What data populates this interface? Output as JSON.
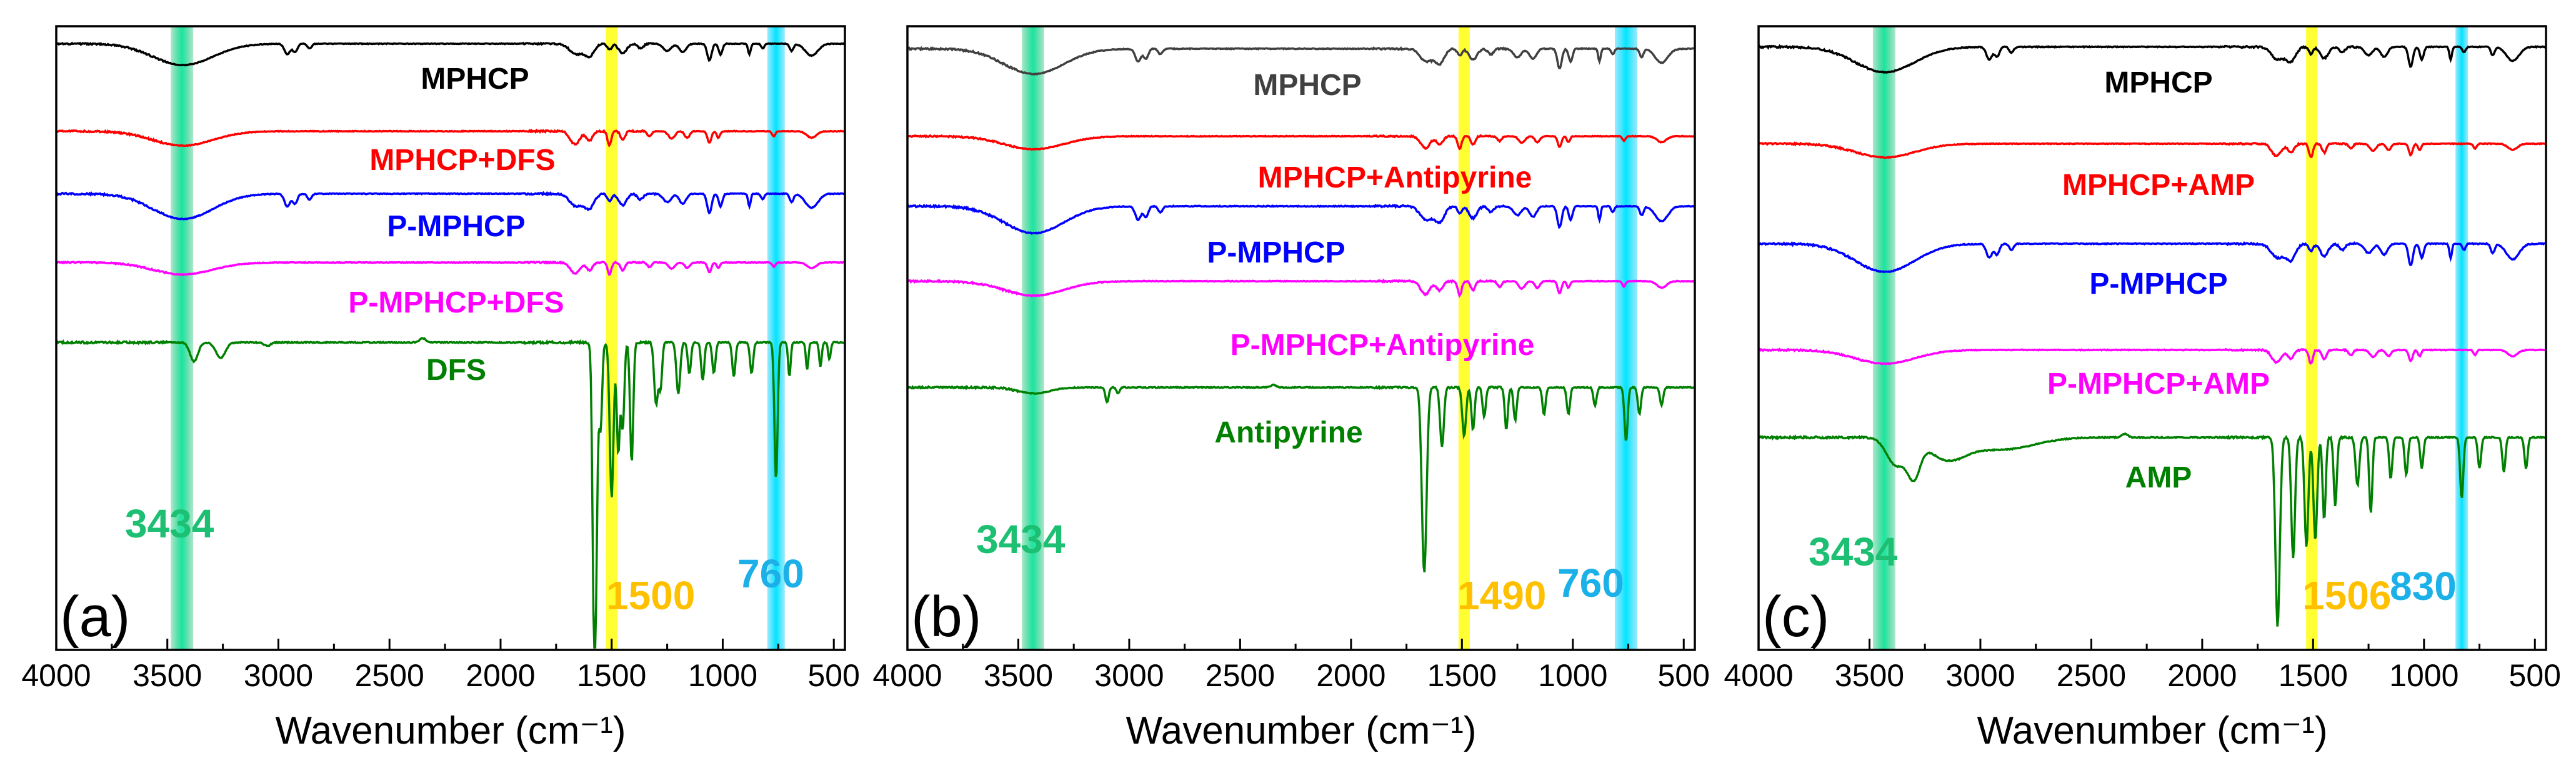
{
  "chart_data": [
    {
      "type": "line",
      "panel": "(a)",
      "xlabel": "Wavenumber (cm⁻¹)",
      "ylabel": "",
      "xlim": [
        4000,
        450
      ],
      "x_reversed": true,
      "x_ticks": [
        4000,
        3500,
        3000,
        2500,
        2000,
        1500,
        1000,
        500
      ],
      "y_ticks_shown": false,
      "series": [
        {
          "name": "MPHCP",
          "color": "#000000"
        },
        {
          "name": "MPHCP+DFS",
          "color": "#ff0000"
        },
        {
          "name": "P-MPHCP",
          "color": "#0000ff"
        },
        {
          "name": "P-MPHCP+DFS",
          "color": "#ff00ff"
        },
        {
          "name": "DFS",
          "color": "#008000"
        }
      ],
      "highlights": [
        {
          "label": "3434",
          "wavenumber": 3434,
          "color": "#1dbf73"
        },
        {
          "label": "1500",
          "wavenumber": 1500,
          "color": "#ffc000"
        },
        {
          "label": "760",
          "wavenumber": 760,
          "color": "#1cb0e8"
        }
      ]
    },
    {
      "type": "line",
      "panel": "(b)",
      "xlabel": "Wavenumber (cm⁻¹)",
      "ylabel": "",
      "xlim": [
        4000,
        450
      ],
      "x_reversed": true,
      "x_ticks": [
        4000,
        3500,
        3000,
        2500,
        2000,
        1500,
        1000,
        500
      ],
      "y_ticks_shown": false,
      "series": [
        {
          "name": "MPHCP",
          "color": "#404040"
        },
        {
          "name": "MPHCP+Antipyrine",
          "color": "#ff0000"
        },
        {
          "name": "P-MPHCP",
          "color": "#0000ff"
        },
        {
          "name": "P-MPHCP+Antipyrine",
          "color": "#ff00ff"
        },
        {
          "name": "Antipyrine",
          "color": "#008000"
        }
      ],
      "highlights": [
        {
          "label": "3434",
          "wavenumber": 3434,
          "color": "#1dbf73"
        },
        {
          "label": "1490",
          "wavenumber": 1490,
          "color": "#ffc000"
        },
        {
          "label": "760",
          "wavenumber": 760,
          "color": "#1cb0e8"
        }
      ]
    },
    {
      "type": "line",
      "panel": "(c)",
      "xlabel": "Wavenumber (cm⁻¹)",
      "ylabel": "",
      "xlim": [
        4000,
        450
      ],
      "x_reversed": true,
      "x_ticks": [
        4000,
        3500,
        3000,
        2500,
        2000,
        1500,
        1000,
        500
      ],
      "y_ticks_shown": false,
      "series": [
        {
          "name": "MPHCP",
          "color": "#000000"
        },
        {
          "name": "MPHCP+AMP",
          "color": "#ff0000"
        },
        {
          "name": "P-MPHCP",
          "color": "#0000ff"
        },
        {
          "name": "P-MPHCP+AMP",
          "color": "#ff00ff"
        },
        {
          "name": "AMP",
          "color": "#008000"
        }
      ],
      "highlights": [
        {
          "label": "3434",
          "wavenumber": 3434,
          "color": "#1dbf73"
        },
        {
          "label": "1506",
          "wavenumber": 1506,
          "color": "#ffc000"
        },
        {
          "label": "830",
          "wavenumber": 830,
          "color": "#1cb0e8"
        }
      ]
    }
  ]
}
